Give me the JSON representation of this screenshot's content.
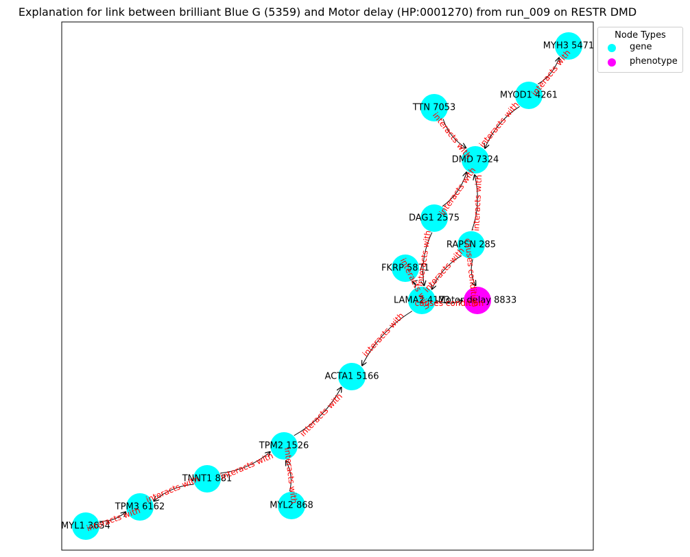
{
  "title": "Explanation for link between brilliant Blue G (5359) and Motor delay (HP:0001270) from run_009 on RESTR DMD",
  "legend": {
    "title": "Node Types",
    "items": [
      {
        "label": "gene",
        "color": "#00ffff"
      },
      {
        "label": "phenotype",
        "color": "#ff00ff"
      }
    ]
  },
  "colors": {
    "gene": "#00ffff",
    "phenotype": "#ff00ff",
    "edge": "#000000",
    "edge_label": "#ff0000"
  },
  "nodes": [
    {
      "id": "MYH3",
      "label": "MYH3 5471",
      "type": "gene"
    },
    {
      "id": "MYOD1",
      "label": "MYOD1 4261",
      "type": "gene"
    },
    {
      "id": "TTN",
      "label": "TTN 7053",
      "type": "gene"
    },
    {
      "id": "DMD",
      "label": "DMD 7324",
      "type": "gene"
    },
    {
      "id": "DAG1",
      "label": "DAG1 2575",
      "type": "gene"
    },
    {
      "id": "RAPSN",
      "label": "RAPSN 285",
      "type": "gene"
    },
    {
      "id": "FKRP",
      "label": "FKRP 5871",
      "type": "gene"
    },
    {
      "id": "LAMA2",
      "label": "LAMA2 4173",
      "type": "gene"
    },
    {
      "id": "MOTOR",
      "label": "Motor delay 8833",
      "type": "phenotype"
    },
    {
      "id": "ACTA1",
      "label": "ACTA1 5166",
      "type": "gene"
    },
    {
      "id": "TPM2",
      "label": "TPM2 1526",
      "type": "gene"
    },
    {
      "id": "TNNT1",
      "label": "TNNT1 881",
      "type": "gene"
    },
    {
      "id": "MYL2",
      "label": "MYL2 868",
      "type": "gene"
    },
    {
      "id": "TPM3",
      "label": "TPM3 6162",
      "type": "gene"
    },
    {
      "id": "MYL1",
      "label": "MYL1 3634",
      "type": "gene"
    }
  ],
  "edges": [
    {
      "source": "MYOD1",
      "target": "MYH3",
      "label": "interacts with"
    },
    {
      "source": "MYOD1",
      "target": "DMD",
      "label": "interacts with"
    },
    {
      "source": "TTN",
      "target": "DMD",
      "label": "interacts with"
    },
    {
      "source": "DAG1",
      "target": "DMD",
      "label": "interacts with"
    },
    {
      "source": "RAPSN",
      "target": "DMD",
      "label": "interacts with"
    },
    {
      "source": "DAG1",
      "target": "LAMA2",
      "label": "interacts with"
    },
    {
      "source": "RAPSN",
      "target": "LAMA2",
      "label": "interacts with"
    },
    {
      "source": "RAPSN",
      "target": "MOTOR",
      "label": "causes condition"
    },
    {
      "source": "LAMA2",
      "target": "FKRP",
      "label": "interacts with"
    },
    {
      "source": "LAMA2",
      "target": "MOTOR",
      "label": "causes condition"
    },
    {
      "source": "LAMA2",
      "target": "ACTA1",
      "label": "interacts with"
    },
    {
      "source": "TPM2",
      "target": "ACTA1",
      "label": "interacts with"
    },
    {
      "source": "TNNT1",
      "target": "TPM2",
      "label": "interacts with"
    },
    {
      "source": "MYL2",
      "target": "TPM2",
      "label": "interacts with"
    },
    {
      "source": "TNNT1",
      "target": "TPM3",
      "label": "interacts with"
    },
    {
      "source": "MYL1",
      "target": "TPM3",
      "label": "interacts with"
    }
  ]
}
